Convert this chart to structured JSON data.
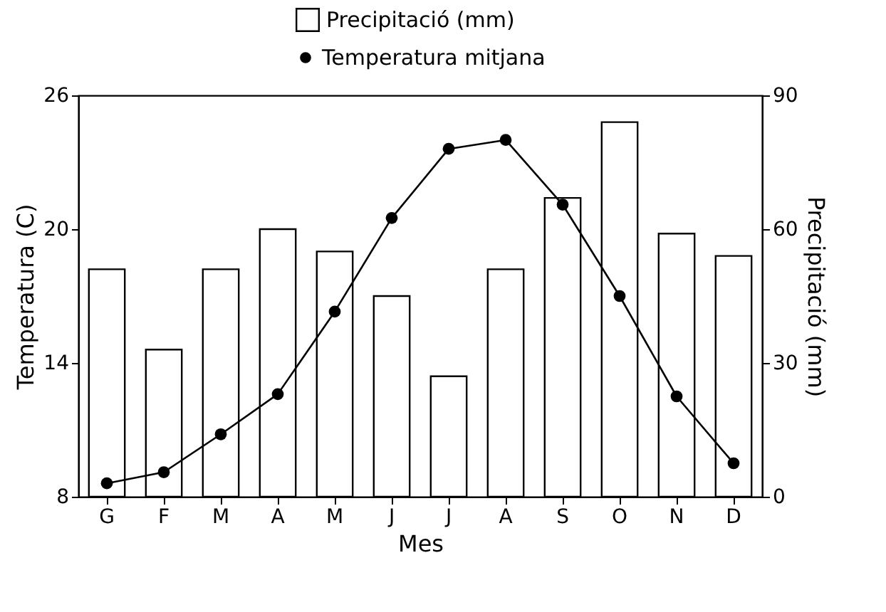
{
  "chart_data": {
    "type": "bar",
    "categories": [
      "G",
      "F",
      "M",
      "A",
      "M",
      "J",
      "J",
      "A",
      "S",
      "O",
      "N",
      "D"
    ],
    "series": [
      {
        "name": "Temperatura mitjana",
        "type": "line",
        "color": "#000000",
        "values": [
          8.6,
          9.1,
          10.8,
          12.6,
          16.3,
          20.5,
          23.6,
          24.0,
          21.1,
          17.0,
          12.5,
          9.5
        ]
      },
      {
        "name": "Precipitació (mm)",
        "axis": "y2",
        "color": "#ffffff",
        "values": [
          51,
          33,
          51,
          60,
          55,
          45,
          27,
          51,
          67,
          84,
          59,
          54
        ]
      }
    ],
    "xlabel": "Mes",
    "ylabel": "Temperatura (C)",
    "y2label": "Precipitació (mm)",
    "ylim": [
      8,
      26
    ],
    "yticks": [
      8,
      14,
      20,
      26
    ],
    "y2lim": [
      0,
      90
    ],
    "y2ticks": [
      0,
      30,
      60,
      90
    ],
    "legend": "top",
    "grid": false,
    "marker": "circle",
    "line_style": "solid"
  }
}
